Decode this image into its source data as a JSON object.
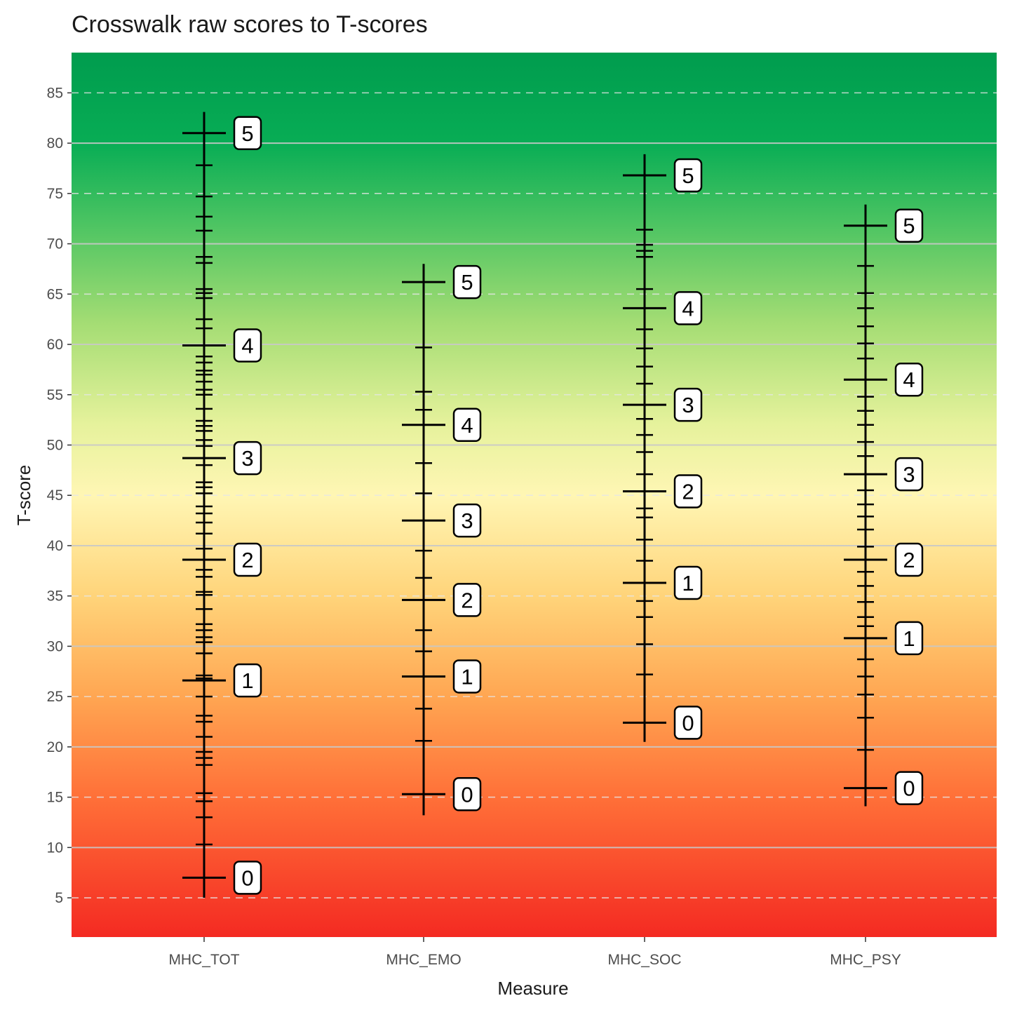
{
  "chart_data": {
    "type": "scatter",
    "title": "Crosswalk raw scores to T-scores",
    "xlabel": "Measure",
    "ylabel": "T-score",
    "ylim": [
      1.1,
      89
    ],
    "yticks": [
      5,
      10,
      15,
      20,
      25,
      30,
      35,
      40,
      45,
      50,
      55,
      60,
      65,
      70,
      75,
      80,
      85
    ],
    "grid": true,
    "background_gradient": [
      {
        "t": 89,
        "color": "#009c4e"
      },
      {
        "t": 80,
        "color": "#08ad55"
      },
      {
        "t": 72,
        "color": "#4cc462"
      },
      {
        "t": 62,
        "color": "#a5dd74"
      },
      {
        "t": 52,
        "color": "#e6f29c"
      },
      {
        "t": 45,
        "color": "#fff6b4"
      },
      {
        "t": 35,
        "color": "#ffd47a"
      },
      {
        "t": 25,
        "color": "#ffa652"
      },
      {
        "t": 15,
        "color": "#ff7038"
      },
      {
        "t": 1.1,
        "color": "#f42a22"
      }
    ],
    "measures": [
      {
        "name": "MHC_TOT",
        "range": [
          5.0,
          83.1
        ],
        "major": [
          {
            "raw": "0",
            "t": 7.0
          },
          {
            "raw": "1",
            "t": 26.6
          },
          {
            "raw": "2",
            "t": 38.6
          },
          {
            "raw": "3",
            "t": 48.7
          },
          {
            "raw": "4",
            "t": 59.9
          },
          {
            "raw": "5",
            "t": 81.0
          }
        ],
        "minor": [
          77.8,
          74.7,
          72.7,
          71.3,
          68.7,
          68.1,
          65.5,
          65.1,
          64.6,
          62.5,
          61.6,
          58.8,
          58.2,
          57.4,
          57.0,
          56.3,
          55.5,
          55.0,
          53.6,
          52.4,
          51.9,
          51.4,
          50.5,
          49.9,
          48.0,
          46.3,
          45.8,
          45.2,
          43.9,
          43.2,
          42.3,
          41.2,
          39.7,
          37.6,
          36.9,
          35.4,
          35.1,
          33.7,
          32.2,
          31.6,
          30.9,
          30.4,
          29.3,
          27.1,
          26.8,
          25.0,
          23.1,
          22.5,
          21.0,
          19.5,
          18.9,
          18.2,
          15.4,
          14.6,
          13.0,
          10.3
        ]
      },
      {
        "name": "MHC_EMO",
        "range": [
          13.2,
          68.0
        ],
        "major": [
          {
            "raw": "0",
            "t": 15.3
          },
          {
            "raw": "1",
            "t": 27.0
          },
          {
            "raw": "2",
            "t": 34.6
          },
          {
            "raw": "3",
            "t": 42.5
          },
          {
            "raw": "4",
            "t": 52.0
          },
          {
            "raw": "5",
            "t": 66.2
          }
        ],
        "minor": [
          59.7,
          55.3,
          53.5,
          48.2,
          45.2,
          39.5,
          36.8,
          31.6,
          29.5,
          23.8,
          20.6
        ]
      },
      {
        "name": "MHC_SOC",
        "range": [
          20.5,
          78.9
        ],
        "major": [
          {
            "raw": "0",
            "t": 22.4
          },
          {
            "raw": "1",
            "t": 36.3
          },
          {
            "raw": "2",
            "t": 45.4
          },
          {
            "raw": "3",
            "t": 54.0
          },
          {
            "raw": "4",
            "t": 63.6
          },
          {
            "raw": "5",
            "t": 76.8
          }
        ],
        "minor": [
          71.4,
          69.9,
          69.3,
          68.7,
          65.5,
          61.5,
          59.6,
          57.8,
          56.1,
          52.6,
          51.0,
          49.3,
          47.1,
          43.7,
          42.8,
          40.6,
          38.5,
          34.5,
          32.9,
          30.2,
          27.2
        ]
      },
      {
        "name": "MHC_PSY",
        "range": [
          14.1,
          73.9
        ],
        "major": [
          {
            "raw": "0",
            "t": 15.9
          },
          {
            "raw": "1",
            "t": 30.8
          },
          {
            "raw": "2",
            "t": 38.6
          },
          {
            "raw": "3",
            "t": 47.1
          },
          {
            "raw": "4",
            "t": 56.5
          },
          {
            "raw": "5",
            "t": 71.8
          }
        ],
        "minor": [
          67.8,
          65.1,
          63.6,
          61.8,
          60.1,
          58.6,
          54.8,
          53.4,
          52.0,
          50.3,
          48.9,
          45.5,
          44.1,
          42.9,
          41.6,
          39.9,
          37.4,
          36.0,
          34.4,
          32.9,
          32.0,
          28.7,
          27.0,
          25.2,
          22.9,
          19.7
        ]
      }
    ]
  }
}
